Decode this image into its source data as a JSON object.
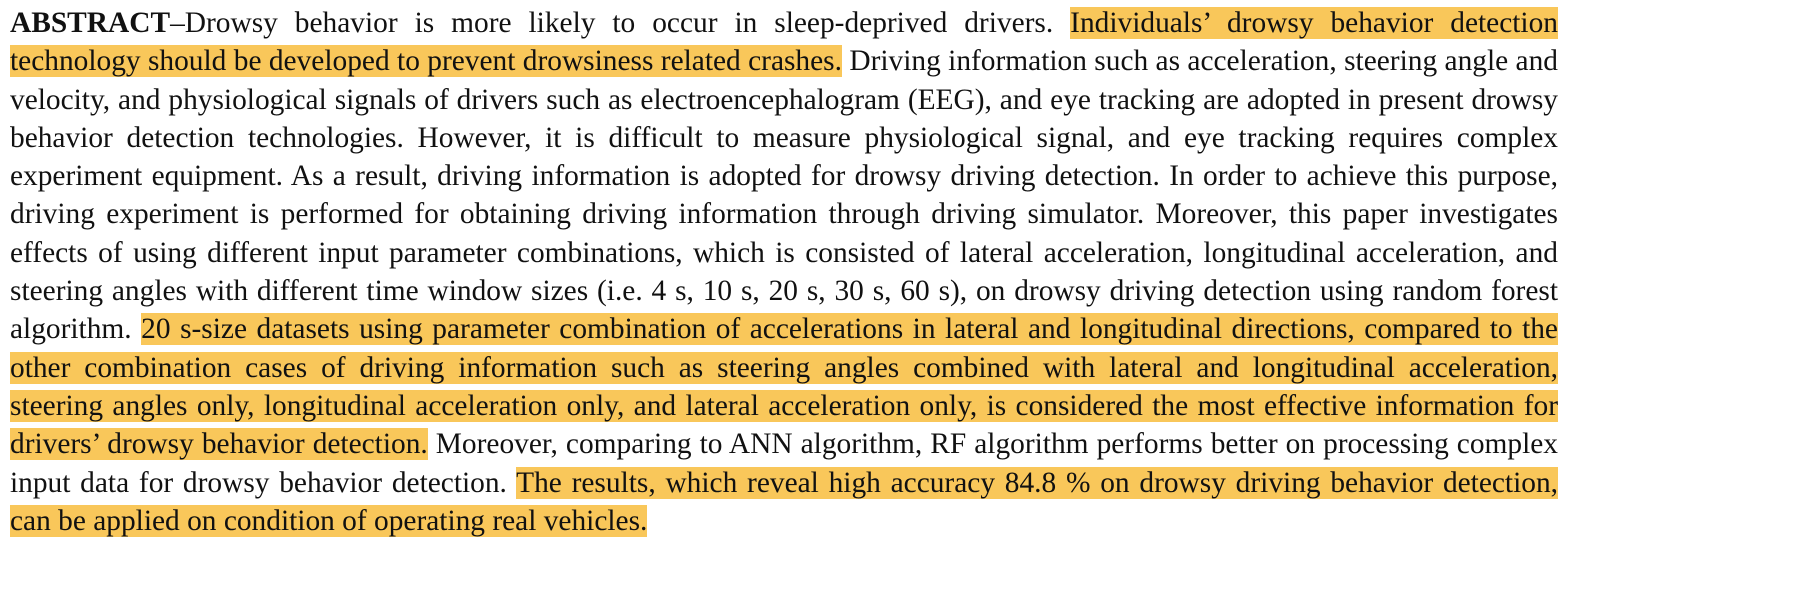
{
  "abstract": {
    "label": "ABSTRACT",
    "dash": "–",
    "highlight_color": "#f9c75a",
    "segments": [
      {
        "text": "Drowsy behavior is more likely to occur in sleep-deprived drivers. ",
        "highlighted": false
      },
      {
        "text": "Individuals’ drowsy behavior detection technology should be developed to prevent drowsiness related crashes.",
        "highlighted": true
      },
      {
        "text": " Driving information such as acceleration, steering angle and velocity, and physiological signals of drivers such as electroencephalogram (EEG), and eye tracking are adopted in present drowsy behavior detection technologies. However, it is difficult to measure physiological signal, and eye tracking requires complex experiment equipment. As a result, driving information is adopted for drowsy driving detection. In order to achieve this purpose, driving experiment is performed for obtaining driving information through driving simulator. Moreover, this paper investigates effects of using different input parameter combinations, which is consisted of lateral acceleration, longitudinal acceleration, and steering angles with different time window sizes (i.e. 4 s, 10 s, 20 s, 30 s, 60 s), on drowsy driving detection using random forest algorithm. ",
        "highlighted": false
      },
      {
        "text": "20 s-size datasets using parameter combination of accelerations in lateral and longitudinal directions, compared to the other combination cases of driving information such as steering angles combined with lateral and longitudinal acceleration, steering angles only, longitudinal acceleration only, and lateral acceleration only, is considered the most effective information for drivers’ drowsy behavior detection.",
        "highlighted": true
      },
      {
        "text": " Moreover, comparing to ANN algorithm, RF algorithm performs better on processing complex input data for drowsy behavior detection. ",
        "highlighted": false
      },
      {
        "text": "The results, which reveal high accuracy 84.8 % on drowsy driving behavior detection, can be applied on condition of operating real vehicles.",
        "highlighted": true
      }
    ]
  }
}
